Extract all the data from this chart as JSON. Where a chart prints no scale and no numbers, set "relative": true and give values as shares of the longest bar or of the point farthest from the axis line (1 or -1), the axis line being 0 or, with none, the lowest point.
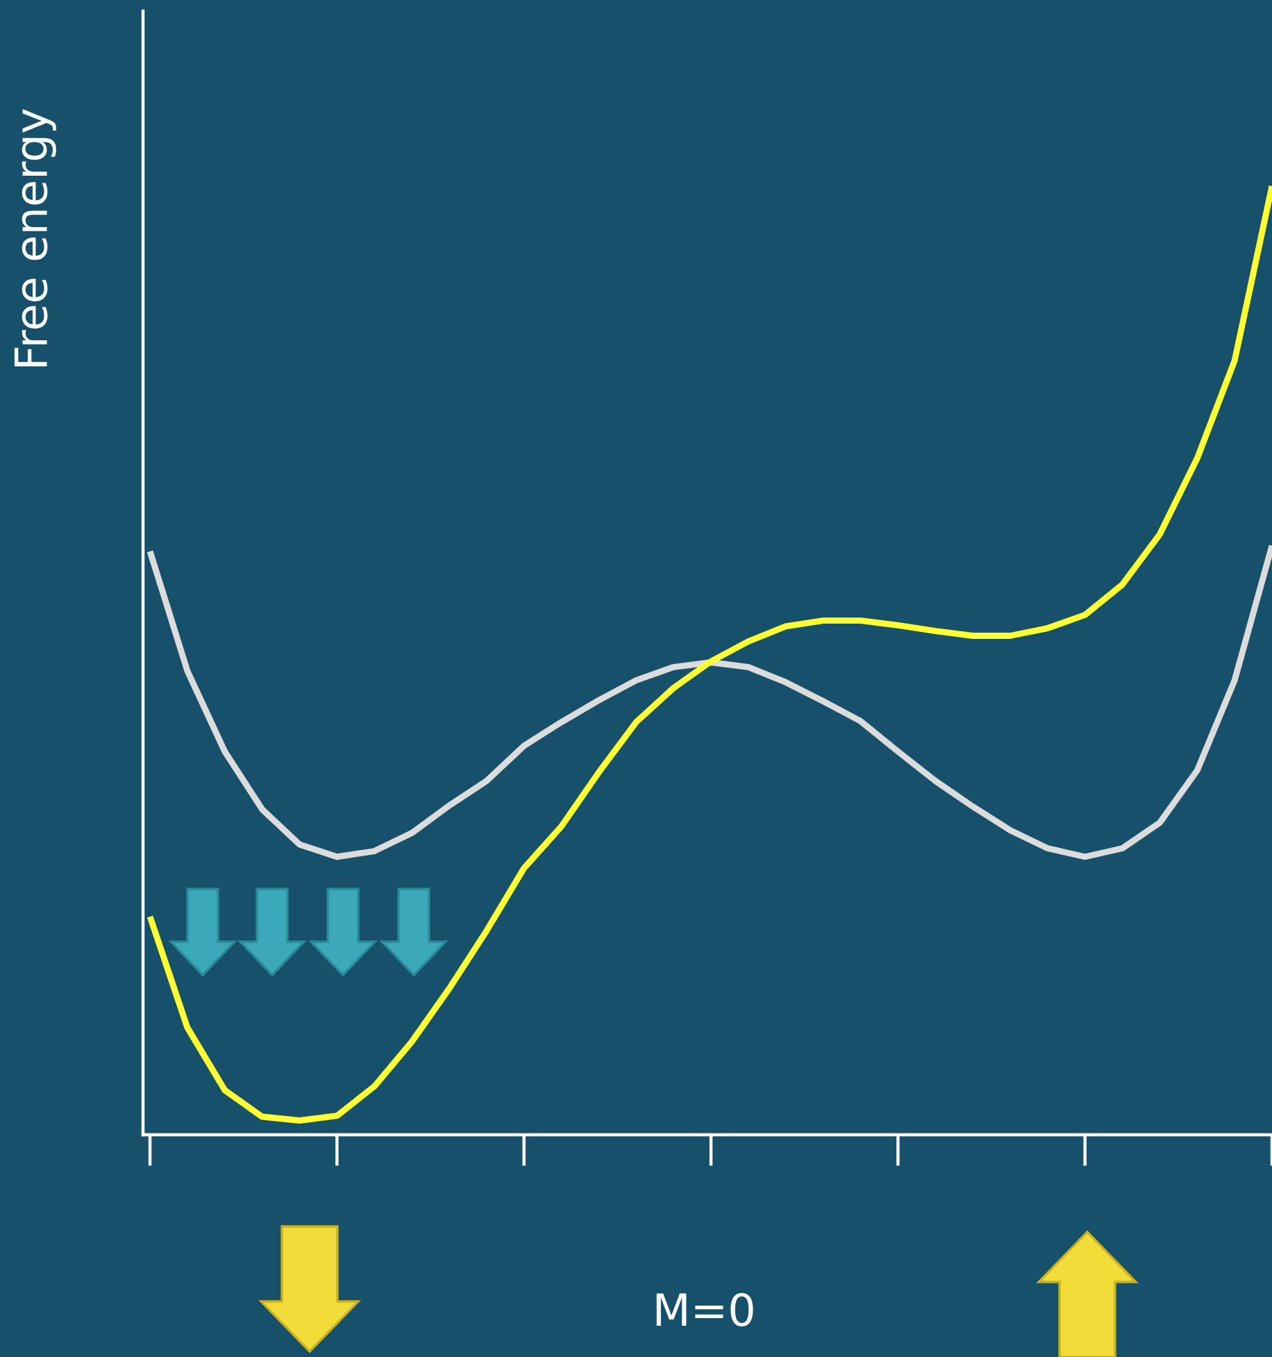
{
  "chart_data": {
    "type": "line",
    "relative": true,
    "xlabel": "M=0",
    "ylabel": "Free energy",
    "categories": [
      null,
      null,
      null,
      null,
      null,
      null,
      null,
      null,
      null,
      null,
      null,
      null,
      null,
      null,
      null,
      null,
      null,
      null,
      null,
      null,
      null,
      null,
      null,
      null,
      null,
      null,
      null,
      null,
      null,
      null,
      null
    ],
    "series": [
      {
        "color": "#dcdcdc",
        "values": [
          0.615,
          0.489,
          0.404,
          0.343,
          0.306,
          0.293,
          0.299,
          0.318,
          0.347,
          0.373,
          0.41,
          0.435,
          0.458,
          0.479,
          0.493,
          0.498,
          0.493,
          0.477,
          0.457,
          0.436,
          0.404,
          0.373,
          0.346,
          0.321,
          0.302,
          0.293,
          0.302,
          0.329,
          0.384,
          0.479,
          0.621
        ]
      },
      {
        "color": "#ffff33",
        "values": [
          0.23,
          0.113,
          0.047,
          0.019,
          0.015,
          0.02,
          0.051,
          0.098,
          0.154,
          0.215,
          0.281,
          0.325,
          0.382,
          0.435,
          0.471,
          0.499,
          0.52,
          0.536,
          0.542,
          0.542,
          0.537,
          0.531,
          0.526,
          0.526,
          0.534,
          0.548,
          0.58,
          0.633,
          0.713,
          0.816,
          1.0
        ]
      }
    ]
  }
}
